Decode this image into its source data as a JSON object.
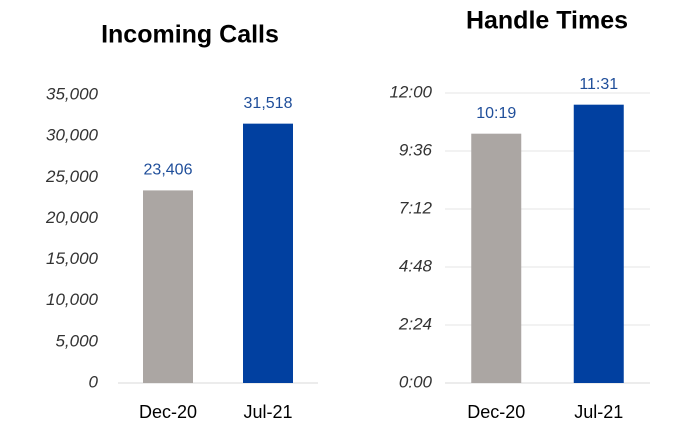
{
  "chart_data": [
    {
      "type": "bar",
      "title": "Incoming Calls",
      "categories": [
        "Dec-20",
        "Jul-21"
      ],
      "values": [
        23406,
        31518
      ],
      "value_labels": [
        "23,406",
        "31,518"
      ],
      "colors": [
        "#aba6a3",
        "#0140a0"
      ],
      "ylim": [
        0,
        35000
      ],
      "yticks": [
        0,
        {
          "value": 5000,
          "label": "5,000"
        },
        {
          "value": 10000,
          "label": "10,000"
        },
        {
          "value": 15000,
          "label": "15,000"
        },
        {
          "value": 20000,
          "label": "20,000"
        },
        {
          "value": 25000,
          "label": "25,000"
        },
        {
          "value": 30000,
          "label": "30,000"
        },
        {
          "value": 35000,
          "label": "35,000"
        }
      ],
      "grid": false
    },
    {
      "type": "bar",
      "title": "Handle Times",
      "categories": [
        "Dec-20",
        "Jul-21"
      ],
      "values": [
        619,
        691
      ],
      "value_labels": [
        "10:19",
        "11:31"
      ],
      "colors": [
        "#aba6a3",
        "#0140a0"
      ],
      "ylim": [
        0,
        720
      ],
      "yticks": [
        {
          "value": 0,
          "label": "0:00"
        },
        {
          "value": 144,
          "label": "2:24"
        },
        {
          "value": 288,
          "label": "4:48"
        },
        {
          "value": 432,
          "label": "7:12"
        },
        {
          "value": 576,
          "label": "9:36"
        },
        {
          "value": 720,
          "label": "12:00"
        }
      ],
      "grid": true
    }
  ]
}
